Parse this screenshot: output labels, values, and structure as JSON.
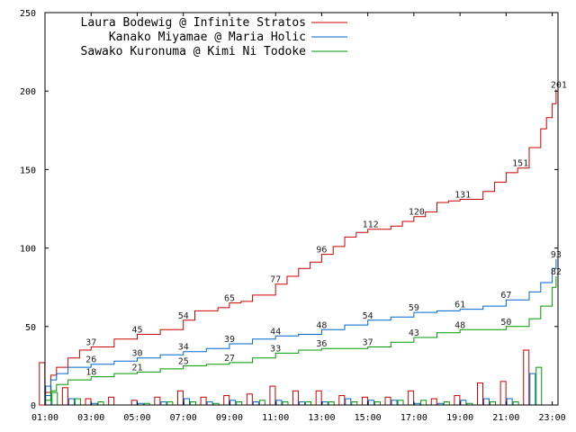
{
  "chart_data": {
    "type": "line",
    "ylim": [
      0,
      250
    ],
    "yticks": [
      0,
      50,
      100,
      150,
      200,
      250
    ],
    "xlim": [
      "01:00",
      "23:15"
    ],
    "xticks": [
      "01:00",
      "03:00",
      "05:00",
      "07:00",
      "09:00",
      "11:00",
      "13:00",
      "15:00",
      "17:00",
      "19:00",
      "21:00",
      "23:00"
    ],
    "grid": false,
    "legend_position": "top-left",
    "series": [
      {
        "name": "Laura Bodewig @ Infinite Stratos",
        "color": "#cc0000",
        "points": [
          [
            "01:00",
            8
          ],
          [
            "01:15",
            19
          ],
          [
            "01:30",
            24
          ],
          [
            "02:00",
            30
          ],
          [
            "02:30",
            35
          ],
          [
            "03:00",
            37
          ],
          [
            "04:00",
            42
          ],
          [
            "05:00",
            45
          ],
          [
            "06:00",
            48
          ],
          [
            "07:00",
            54
          ],
          [
            "07:30",
            60
          ],
          [
            "08:30",
            62
          ],
          [
            "09:00",
            65
          ],
          [
            "09:30",
            66
          ],
          [
            "10:00",
            70
          ],
          [
            "11:00",
            77
          ],
          [
            "11:30",
            82
          ],
          [
            "12:00",
            87
          ],
          [
            "12:30",
            91
          ],
          [
            "13:00",
            96
          ],
          [
            "13:30",
            101
          ],
          [
            "14:00",
            107
          ],
          [
            "14:30",
            110
          ],
          [
            "15:00",
            112
          ],
          [
            "16:00",
            114
          ],
          [
            "16:30",
            117
          ],
          [
            "17:00",
            120
          ],
          [
            "17:30",
            123
          ],
          [
            "18:00",
            129
          ],
          [
            "18:30",
            130
          ],
          [
            "19:00",
            131
          ],
          [
            "20:00",
            136
          ],
          [
            "20:30",
            142
          ],
          [
            "21:00",
            148
          ],
          [
            "21:30",
            151
          ],
          [
            "22:00",
            164
          ],
          [
            "22:30",
            176
          ],
          [
            "22:45",
            183
          ],
          [
            "23:00",
            192
          ],
          [
            "23:10",
            201
          ]
        ],
        "labels": [
          [
            "03:00",
            37,
            "37"
          ],
          [
            "05:00",
            45,
            "45"
          ],
          [
            "07:00",
            54,
            "54"
          ],
          [
            "09:00",
            65,
            "65"
          ],
          [
            "11:00",
            77,
            "77"
          ],
          [
            "13:00",
            96,
            "96"
          ],
          [
            "15:00",
            112,
            "112"
          ],
          [
            "17:00",
            120,
            "120"
          ],
          [
            "19:00",
            131,
            "131"
          ],
          [
            "21:30",
            151,
            "151"
          ],
          [
            "23:10",
            201,
            "201"
          ]
        ]
      },
      {
        "name": "Kanako Miyamae @ Maria Holic",
        "color": "#0066cc",
        "points": [
          [
            "01:00",
            6
          ],
          [
            "01:15",
            16
          ],
          [
            "01:30",
            20
          ],
          [
            "02:00",
            24
          ],
          [
            "03:00",
            26
          ],
          [
            "04:00",
            28
          ],
          [
            "05:00",
            30
          ],
          [
            "06:00",
            32
          ],
          [
            "07:00",
            34
          ],
          [
            "08:00",
            36
          ],
          [
            "09:00",
            39
          ],
          [
            "10:00",
            42
          ],
          [
            "11:00",
            44
          ],
          [
            "12:00",
            45
          ],
          [
            "13:00",
            48
          ],
          [
            "14:00",
            51
          ],
          [
            "15:00",
            54
          ],
          [
            "16:00",
            56
          ],
          [
            "17:00",
            59
          ],
          [
            "18:00",
            60
          ],
          [
            "19:00",
            61
          ],
          [
            "20:00",
            63
          ],
          [
            "21:00",
            67
          ],
          [
            "22:00",
            72
          ],
          [
            "22:30",
            78
          ],
          [
            "23:00",
            87
          ],
          [
            "23:10",
            93
          ]
        ],
        "labels": [
          [
            "03:00",
            26,
            "26"
          ],
          [
            "05:00",
            30,
            "30"
          ],
          [
            "07:00",
            34,
            "34"
          ],
          [
            "09:00",
            39,
            "39"
          ],
          [
            "11:00",
            44,
            "44"
          ],
          [
            "13:00",
            48,
            "48"
          ],
          [
            "15:00",
            54,
            "54"
          ],
          [
            "17:00",
            59,
            "59"
          ],
          [
            "19:00",
            61,
            "61"
          ],
          [
            "21:00",
            67,
            "67"
          ],
          [
            "23:10",
            93,
            "93"
          ]
        ]
      },
      {
        "name": "Sawako Kuronuma @ Kimi Ni Todoke",
        "color": "#009900",
        "points": [
          [
            "01:00",
            3
          ],
          [
            "01:15",
            9
          ],
          [
            "01:30",
            13
          ],
          [
            "02:00",
            16
          ],
          [
            "03:00",
            18
          ],
          [
            "04:00",
            20
          ],
          [
            "05:00",
            21
          ],
          [
            "06:00",
            23
          ],
          [
            "07:00",
            25
          ],
          [
            "08:00",
            26
          ],
          [
            "09:00",
            27
          ],
          [
            "10:00",
            30
          ],
          [
            "11:00",
            33
          ],
          [
            "12:00",
            35
          ],
          [
            "13:00",
            36
          ],
          [
            "14:00",
            36
          ],
          [
            "15:00",
            37
          ],
          [
            "16:00",
            40
          ],
          [
            "17:00",
            43
          ],
          [
            "18:00",
            46
          ],
          [
            "19:00",
            48
          ],
          [
            "20:00",
            48
          ],
          [
            "21:00",
            50
          ],
          [
            "22:00",
            55
          ],
          [
            "22:30",
            63
          ],
          [
            "23:00",
            75
          ],
          [
            "23:10",
            82
          ]
        ],
        "labels": [
          [
            "03:00",
            18,
            "18"
          ],
          [
            "05:00",
            21,
            "21"
          ],
          [
            "07:00",
            25,
            "25"
          ],
          [
            "09:00",
            27,
            "27"
          ],
          [
            "11:00",
            33,
            "33"
          ],
          [
            "13:00",
            36,
            "36"
          ],
          [
            "15:00",
            37,
            "37"
          ],
          [
            "17:00",
            43,
            "43"
          ],
          [
            "19:00",
            48,
            "48"
          ],
          [
            "21:00",
            50,
            "50"
          ],
          [
            "23:10",
            82,
            "82"
          ]
        ]
      }
    ],
    "bars": {
      "description_free": true,
      "groups": [
        [
          "01:10",
          [
            27,
            12,
            8
          ]
        ],
        [
          "02:10",
          [
            11,
            4,
            4
          ]
        ],
        [
          "03:10",
          [
            4,
            1,
            2
          ]
        ],
        [
          "04:10",
          [
            5,
            0,
            0
          ]
        ],
        [
          "05:10",
          [
            3,
            1,
            1
          ]
        ],
        [
          "06:10",
          [
            5,
            2,
            2
          ]
        ],
        [
          "07:10",
          [
            9,
            4,
            2
          ]
        ],
        [
          "08:10",
          [
            5,
            2,
            1
          ]
        ],
        [
          "09:10",
          [
            6,
            3,
            2
          ]
        ],
        [
          "10:10",
          [
            7,
            2,
            3
          ]
        ],
        [
          "11:10",
          [
            12,
            3,
            2
          ]
        ],
        [
          "12:10",
          [
            9,
            2,
            2
          ]
        ],
        [
          "13:10",
          [
            9,
            2,
            2
          ]
        ],
        [
          "14:10",
          [
            6,
            4,
            2
          ]
        ],
        [
          "15:10",
          [
            5,
            3,
            2
          ]
        ],
        [
          "16:10",
          [
            5,
            3,
            3
          ]
        ],
        [
          "17:10",
          [
            9,
            1,
            3
          ]
        ],
        [
          "18:10",
          [
            4,
            1,
            2
          ]
        ],
        [
          "19:10",
          [
            6,
            3,
            1
          ]
        ],
        [
          "20:10",
          [
            14,
            4,
            2
          ]
        ],
        [
          "21:10",
          [
            15,
            4,
            2
          ]
        ],
        [
          "22:10",
          [
            35,
            20,
            24
          ]
        ]
      ]
    }
  }
}
